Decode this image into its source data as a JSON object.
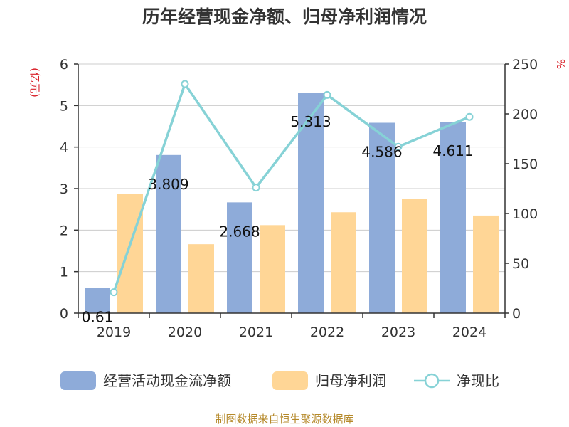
{
  "chart_data": {
    "type": "bar",
    "title": "历年经营现金净额、归母净利润情况",
    "categories": [
      "2019",
      "2020",
      "2021",
      "2022",
      "2023",
      "2024"
    ],
    "series": [
      {
        "name": "经营活动现金流净额",
        "kind": "bar",
        "axis": "left",
        "color": "#8eabd9",
        "values": [
          0.61,
          3.809,
          2.668,
          5.313,
          4.586,
          4.611
        ],
        "labels": [
          "0.61",
          "3.809",
          "2.668",
          "5.313",
          "4.586",
          "4.611"
        ]
      },
      {
        "name": "归母净利润",
        "kind": "bar",
        "axis": "left",
        "color": "#ffd696",
        "values": [
          2.88,
          1.66,
          2.12,
          2.43,
          2.75,
          2.35
        ]
      },
      {
        "name": "净现比",
        "kind": "line",
        "axis": "right",
        "color": "#86d2d6",
        "values": [
          21,
          230,
          126,
          219,
          167,
          197
        ]
      }
    ],
    "y_left": {
      "unit": "(亿元)",
      "min": 0,
      "max": 6,
      "ticks": [
        "0",
        "1",
        "2",
        "3",
        "4",
        "5",
        "6"
      ]
    },
    "y_right": {
      "unit": "%",
      "min": 0,
      "max": 250,
      "ticks": [
        "0",
        "50",
        "100",
        "150",
        "200",
        "250"
      ]
    },
    "grid": true,
    "legend_position": "bottom"
  },
  "source_text": "制图数据来自恒生聚源数据库"
}
